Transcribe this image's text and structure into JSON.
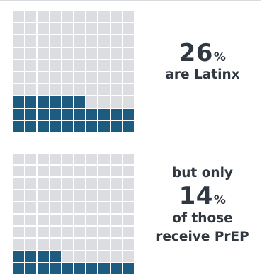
{
  "colors": {
    "filled": "#1d5b80",
    "empty": "#dcdde0",
    "text": "#2f3740"
  },
  "chart_data": [
    {
      "type": "waffle",
      "grid": {
        "rows": 10,
        "cols": 10
      },
      "value": 26,
      "unit": "%",
      "fill_from": "bottom",
      "annotation": {
        "value_text": "26",
        "unit_text": "%",
        "caption": "are Latinx"
      }
    },
    {
      "type": "waffle",
      "grid": {
        "rows": 10,
        "cols": 10
      },
      "value": 14,
      "unit": "%",
      "fill_from": "bottom",
      "annotation": {
        "prefix": "but only",
        "value_text": "14",
        "unit_text": "%",
        "caption_line1": "of those",
        "caption_line2": "receive PrEP"
      }
    }
  ]
}
